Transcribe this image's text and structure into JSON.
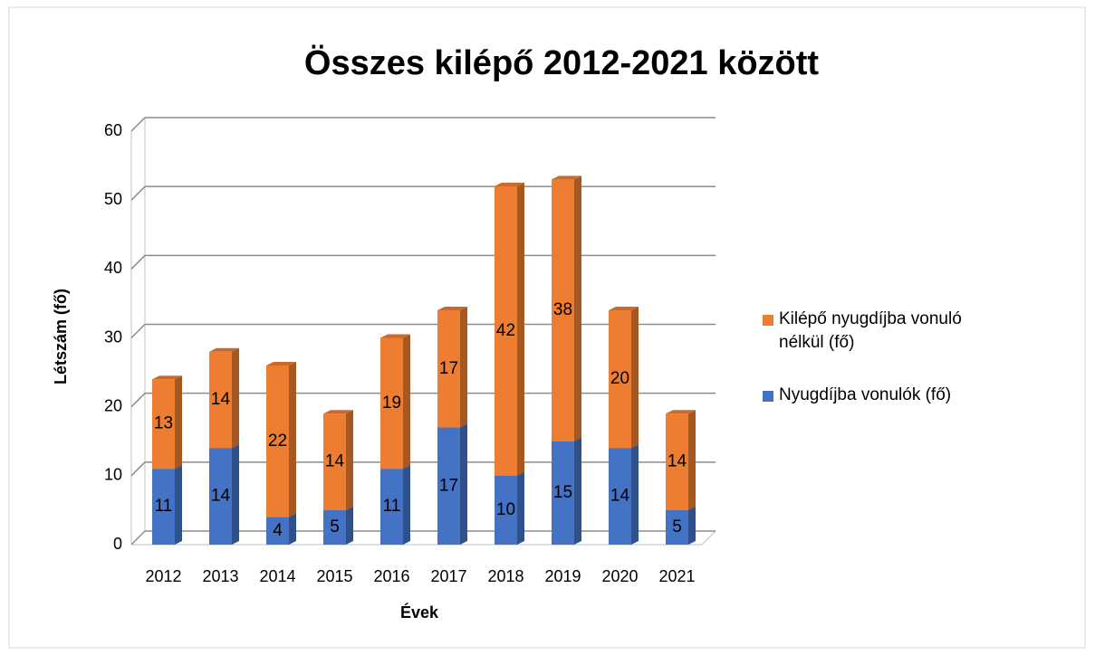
{
  "chart_data": {
    "type": "bar3d_stacked",
    "title": "Összes kilépő 2012-2021 között",
    "x_label": "Évek",
    "y_label": "Létszám (fő)",
    "categories": [
      "2012",
      "2013",
      "2014",
      "2015",
      "2016",
      "2017",
      "2018",
      "2019",
      "2020",
      "2021"
    ],
    "series": [
      {
        "name": "Nyugdíjba vonulók (fő)",
        "color": "#4472c4",
        "values": [
          11,
          14,
          4,
          5,
          11,
          17,
          10,
          15,
          14,
          5
        ]
      },
      {
        "name": "Kilépő nyugdíjba vonuló nélkül (fő)",
        "color": "#ed7d31",
        "values": [
          13,
          14,
          22,
          14,
          19,
          17,
          42,
          38,
          20,
          14
        ]
      }
    ],
    "ylim": [
      0,
      60
    ],
    "yticks": [
      0,
      10,
      20,
      30,
      40,
      50,
      60
    ],
    "grid": true,
    "legend": "right"
  }
}
